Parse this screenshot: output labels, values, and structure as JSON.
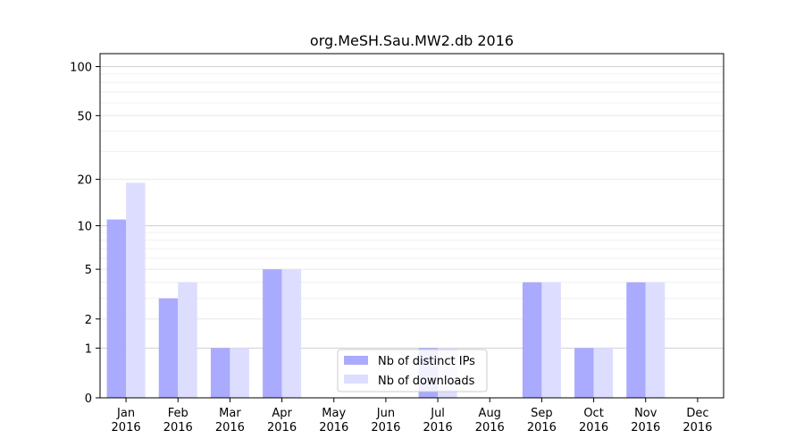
{
  "chart_data": {
    "type": "bar",
    "title": "org.MeSH.Sau.MW2.db 2016",
    "xlabel": "",
    "ylabel": "",
    "y_scale": "log(1+y)",
    "ylim": [
      0,
      120
    ],
    "y_ticks": [
      0,
      1,
      2,
      5,
      10,
      20,
      50,
      100
    ],
    "grid": "horizontal",
    "legend_position": "lower-center",
    "categories": [
      [
        "Jan",
        "2016"
      ],
      [
        "Feb",
        "2016"
      ],
      [
        "Mar",
        "2016"
      ],
      [
        "Apr",
        "2016"
      ],
      [
        "May",
        "2016"
      ],
      [
        "Jun",
        "2016"
      ],
      [
        "Jul",
        "2016"
      ],
      [
        "Aug",
        "2016"
      ],
      [
        "Sep",
        "2016"
      ],
      [
        "Oct",
        "2016"
      ],
      [
        "Nov",
        "2016"
      ],
      [
        "Dec",
        "2016"
      ]
    ],
    "series": [
      {
        "name": "Nb of distinct IPs",
        "color": "#aaaaff",
        "values": [
          11,
          3,
          1,
          5,
          0,
          0,
          1,
          0,
          4,
          1,
          4,
          0
        ]
      },
      {
        "name": "Nb of downloads",
        "color": "#ddddff",
        "values": [
          19,
          4,
          1,
          5,
          0,
          0,
          1,
          0,
          4,
          1,
          4,
          0
        ]
      }
    ]
  }
}
